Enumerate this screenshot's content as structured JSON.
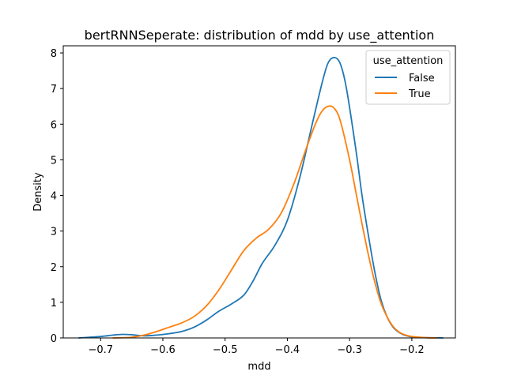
{
  "chart_data": {
    "type": "line",
    "title": "bertRNNSeperate: distribution of mdd by use_attention",
    "xlabel": "mdd",
    "ylabel": "Density",
    "xlim": [
      -0.76,
      -0.13
    ],
    "ylim": [
      0,
      8.2
    ],
    "xticks": [
      -0.7,
      -0.6,
      -0.5,
      -0.4,
      -0.3,
      -0.2
    ],
    "xtick_labels": [
      "−0.7",
      "−0.6",
      "−0.5",
      "−0.4",
      "−0.3",
      "−0.2"
    ],
    "yticks": [
      0,
      1,
      2,
      3,
      4,
      5,
      6,
      7,
      8
    ],
    "ytick_labels": [
      "0",
      "1",
      "2",
      "3",
      "4",
      "5",
      "6",
      "7",
      "8"
    ],
    "grid": false,
    "legend": {
      "title": "use_attention",
      "placement": "top-right"
    },
    "series": [
      {
        "name": "False",
        "color": "#1f77b4",
        "x": [
          -0.735,
          -0.7,
          -0.68,
          -0.665,
          -0.65,
          -0.63,
          -0.61,
          -0.59,
          -0.57,
          -0.55,
          -0.53,
          -0.51,
          -0.49,
          -0.47,
          -0.455,
          -0.44,
          -0.42,
          -0.4,
          -0.38,
          -0.36,
          -0.345,
          -0.335,
          -0.325,
          -0.315,
          -0.305,
          -0.29,
          -0.28,
          -0.27,
          -0.26,
          -0.25,
          -0.24,
          -0.23,
          -0.22,
          -0.21,
          -0.2,
          -0.18,
          -0.15
        ],
        "y": [
          0.0,
          0.04,
          0.08,
          0.1,
          0.09,
          0.06,
          0.08,
          0.12,
          0.18,
          0.3,
          0.5,
          0.75,
          0.95,
          1.2,
          1.6,
          2.1,
          2.6,
          3.3,
          4.5,
          6.0,
          7.1,
          7.7,
          7.87,
          7.7,
          7.0,
          5.3,
          4.0,
          2.9,
          1.9,
          1.1,
          0.6,
          0.3,
          0.15,
          0.07,
          0.03,
          0.01,
          0.0
        ]
      },
      {
        "name": "True",
        "color": "#ff7f0e",
        "x": [
          -0.68,
          -0.65,
          -0.63,
          -0.61,
          -0.59,
          -0.57,
          -0.55,
          -0.53,
          -0.51,
          -0.49,
          -0.47,
          -0.45,
          -0.43,
          -0.41,
          -0.39,
          -0.37,
          -0.355,
          -0.345,
          -0.335,
          -0.325,
          -0.315,
          -0.3,
          -0.29,
          -0.28,
          -0.27,
          -0.26,
          -0.25,
          -0.24,
          -0.23,
          -0.22,
          -0.21,
          -0.2,
          -0.18,
          -0.16
        ],
        "y": [
          0.0,
          0.02,
          0.08,
          0.18,
          0.3,
          0.42,
          0.6,
          0.9,
          1.35,
          1.9,
          2.45,
          2.8,
          3.05,
          3.5,
          4.3,
          5.3,
          6.0,
          6.35,
          6.5,
          6.45,
          6.1,
          5.0,
          4.1,
          3.2,
          2.35,
          1.6,
          1.0,
          0.6,
          0.32,
          0.16,
          0.08,
          0.04,
          0.01,
          0.0
        ]
      }
    ]
  }
}
